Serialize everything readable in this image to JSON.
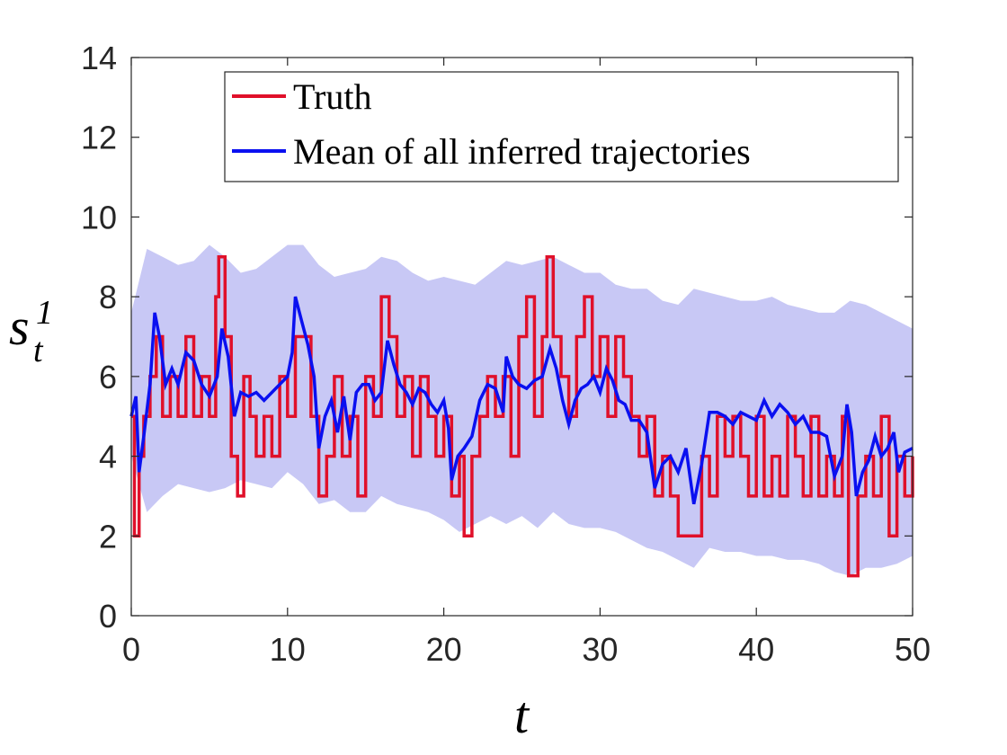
{
  "chart_data": {
    "type": "line",
    "title": "",
    "xlabel": "t",
    "ylabel": "s",
    "ylabel_sub": "t",
    "ylabel_sup": "1",
    "xlim": [
      0,
      50
    ],
    "ylim": [
      0,
      14
    ],
    "xticks": [
      0,
      10,
      20,
      30,
      40,
      50
    ],
    "yticks": [
      0,
      2,
      4,
      6,
      8,
      10,
      12,
      14
    ],
    "grid": false,
    "legend_position": "top-right",
    "colors": {
      "truth": "#e0102a",
      "mean": "#0a10f0",
      "band": "#c8c8f5"
    },
    "series": [
      {
        "name": "Truth",
        "style": "step",
        "points": [
          [
            0,
            5
          ],
          [
            0.2,
            2
          ],
          [
            0.5,
            4
          ],
          [
            0.8,
            5
          ],
          [
            1.2,
            6
          ],
          [
            1.6,
            7
          ],
          [
            2.0,
            5
          ],
          [
            2.5,
            6
          ],
          [
            3.0,
            5
          ],
          [
            3.5,
            7
          ],
          [
            4.0,
            5
          ],
          [
            4.5,
            6
          ],
          [
            5.0,
            5
          ],
          [
            5.4,
            8
          ],
          [
            5.6,
            9
          ],
          [
            6.0,
            7
          ],
          [
            6.4,
            4
          ],
          [
            6.8,
            3
          ],
          [
            7.2,
            6
          ],
          [
            7.6,
            5
          ],
          [
            8.0,
            4
          ],
          [
            8.5,
            5
          ],
          [
            9.0,
            4
          ],
          [
            9.5,
            6
          ],
          [
            10.0,
            5
          ],
          [
            10.5,
            7
          ],
          [
            11.0,
            7
          ],
          [
            11.5,
            5
          ],
          [
            12.0,
            3
          ],
          [
            12.5,
            4
          ],
          [
            13.0,
            6
          ],
          [
            13.5,
            4
          ],
          [
            14.0,
            5
          ],
          [
            14.5,
            3
          ],
          [
            15.0,
            6
          ],
          [
            15.5,
            5
          ],
          [
            16.0,
            8
          ],
          [
            16.5,
            7
          ],
          [
            17.0,
            5
          ],
          [
            17.5,
            6
          ],
          [
            18.0,
            4
          ],
          [
            18.5,
            6
          ],
          [
            19.0,
            5
          ],
          [
            19.5,
            4
          ],
          [
            20.0,
            5
          ],
          [
            20.5,
            3
          ],
          [
            21.0,
            4
          ],
          [
            21.3,
            2
          ],
          [
            21.8,
            4
          ],
          [
            22.3,
            5
          ],
          [
            22.8,
            6
          ],
          [
            23.3,
            5
          ],
          [
            23.8,
            6
          ],
          [
            24.3,
            4
          ],
          [
            24.8,
            7
          ],
          [
            25.3,
            8
          ],
          [
            25.8,
            5
          ],
          [
            26.3,
            7
          ],
          [
            26.6,
            9
          ],
          [
            27.0,
            7
          ],
          [
            27.5,
            6
          ],
          [
            28.0,
            5
          ],
          [
            28.5,
            7
          ],
          [
            29.0,
            8
          ],
          [
            29.5,
            6
          ],
          [
            30.0,
            7
          ],
          [
            30.5,
            5
          ],
          [
            31.0,
            7
          ],
          [
            31.5,
            6
          ],
          [
            32.0,
            5
          ],
          [
            32.5,
            4
          ],
          [
            33.0,
            5
          ],
          [
            33.5,
            3
          ],
          [
            34.0,
            4
          ],
          [
            34.5,
            3
          ],
          [
            35.0,
            2
          ],
          [
            35.5,
            2
          ],
          [
            36.0,
            2
          ],
          [
            36.5,
            4
          ],
          [
            37.0,
            3
          ],
          [
            37.5,
            5
          ],
          [
            38.0,
            4
          ],
          [
            38.5,
            5
          ],
          [
            39.0,
            4
          ],
          [
            39.5,
            3
          ],
          [
            40.0,
            5
          ],
          [
            40.5,
            3
          ],
          [
            41.0,
            4
          ],
          [
            41.5,
            3
          ],
          [
            42.0,
            5
          ],
          [
            42.5,
            4
          ],
          [
            43.0,
            3
          ],
          [
            43.5,
            5
          ],
          [
            44.0,
            3
          ],
          [
            44.5,
            4
          ],
          [
            45.0,
            3
          ],
          [
            45.5,
            5
          ],
          [
            45.9,
            1
          ],
          [
            46.5,
            3
          ],
          [
            47.0,
            4
          ],
          [
            47.5,
            3
          ],
          [
            48.0,
            5
          ],
          [
            48.5,
            2
          ],
          [
            49.0,
            4
          ],
          [
            49.5,
            3
          ],
          [
            50.0,
            4
          ]
        ]
      },
      {
        "name": "Mean of all inferred trajectories",
        "style": "line",
        "points": [
          [
            0,
            5.0
          ],
          [
            0.3,
            5.5
          ],
          [
            0.5,
            3.6
          ],
          [
            0.8,
            4.5
          ],
          [
            1.2,
            5.8
          ],
          [
            1.5,
            7.6
          ],
          [
            1.8,
            7.0
          ],
          [
            2.2,
            5.8
          ],
          [
            2.6,
            6.2
          ],
          [
            3.0,
            5.8
          ],
          [
            3.5,
            6.6
          ],
          [
            4.0,
            6.4
          ],
          [
            4.5,
            5.8
          ],
          [
            5.0,
            5.5
          ],
          [
            5.5,
            6.0
          ],
          [
            5.8,
            7.2
          ],
          [
            6.2,
            6.5
          ],
          [
            6.6,
            5.0
          ],
          [
            7.0,
            5.6
          ],
          [
            7.5,
            5.5
          ],
          [
            8.0,
            5.6
          ],
          [
            8.5,
            5.4
          ],
          [
            9.0,
            5.6
          ],
          [
            9.5,
            5.8
          ],
          [
            10.0,
            6.0
          ],
          [
            10.3,
            6.6
          ],
          [
            10.5,
            8.0
          ],
          [
            10.9,
            7.4
          ],
          [
            11.3,
            6.8
          ],
          [
            11.7,
            6.0
          ],
          [
            12.0,
            4.2
          ],
          [
            12.4,
            5.0
          ],
          [
            12.8,
            5.4
          ],
          [
            13.2,
            4.6
          ],
          [
            13.6,
            5.5
          ],
          [
            14.0,
            4.4
          ],
          [
            14.4,
            5.6
          ],
          [
            14.8,
            5.8
          ],
          [
            15.2,
            5.8
          ],
          [
            15.6,
            5.4
          ],
          [
            16.0,
            5.6
          ],
          [
            16.4,
            6.9
          ],
          [
            16.8,
            6.3
          ],
          [
            17.2,
            5.8
          ],
          [
            17.6,
            5.6
          ],
          [
            18.0,
            5.3
          ],
          [
            18.4,
            5.7
          ],
          [
            18.8,
            5.6
          ],
          [
            19.2,
            5.3
          ],
          [
            19.6,
            5.1
          ],
          [
            20.0,
            5.4
          ],
          [
            20.3,
            4.7
          ],
          [
            20.5,
            3.4
          ],
          [
            20.9,
            4.0
          ],
          [
            21.3,
            4.2
          ],
          [
            21.8,
            4.5
          ],
          [
            22.3,
            5.4
          ],
          [
            22.8,
            5.8
          ],
          [
            23.3,
            5.7
          ],
          [
            23.8,
            5.1
          ],
          [
            24.0,
            6.5
          ],
          [
            24.4,
            6.0
          ],
          [
            24.8,
            5.8
          ],
          [
            25.3,
            5.7
          ],
          [
            25.8,
            5.9
          ],
          [
            26.3,
            6.0
          ],
          [
            26.8,
            6.7
          ],
          [
            27.2,
            6.2
          ],
          [
            27.6,
            5.4
          ],
          [
            28.0,
            4.8
          ],
          [
            28.4,
            5.4
          ],
          [
            28.8,
            5.7
          ],
          [
            29.2,
            5.8
          ],
          [
            29.6,
            6.0
          ],
          [
            30.0,
            5.6
          ],
          [
            30.4,
            6.2
          ],
          [
            30.8,
            5.9
          ],
          [
            31.2,
            5.4
          ],
          [
            31.6,
            5.3
          ],
          [
            32.0,
            4.9
          ],
          [
            32.5,
            4.9
          ],
          [
            33.0,
            4.6
          ],
          [
            33.5,
            3.2
          ],
          [
            34.0,
            3.8
          ],
          [
            34.5,
            4.0
          ],
          [
            35.0,
            3.6
          ],
          [
            35.5,
            4.2
          ],
          [
            36.0,
            2.8
          ],
          [
            36.5,
            3.8
          ],
          [
            37.0,
            5.1
          ],
          [
            37.5,
            5.1
          ],
          [
            38.0,
            5.0
          ],
          [
            38.5,
            4.8
          ],
          [
            39.0,
            5.1
          ],
          [
            39.5,
            5.0
          ],
          [
            40.0,
            4.9
          ],
          [
            40.5,
            5.4
          ],
          [
            41.0,
            5.0
          ],
          [
            41.5,
            5.3
          ],
          [
            42.0,
            5.1
          ],
          [
            42.5,
            4.8
          ],
          [
            43.0,
            5.0
          ],
          [
            43.5,
            4.6
          ],
          [
            44.0,
            4.6
          ],
          [
            44.5,
            4.5
          ],
          [
            45.0,
            3.5
          ],
          [
            45.5,
            4.0
          ],
          [
            45.8,
            5.3
          ],
          [
            46.1,
            4.6
          ],
          [
            46.4,
            3.0
          ],
          [
            46.8,
            3.6
          ],
          [
            47.2,
            3.9
          ],
          [
            47.6,
            4.5
          ],
          [
            48.0,
            4.0
          ],
          [
            48.4,
            4.2
          ],
          [
            48.8,
            4.6
          ],
          [
            49.1,
            3.6
          ],
          [
            49.5,
            4.1
          ],
          [
            50.0,
            4.2
          ]
        ]
      }
    ],
    "uncertainty_band": {
      "x": [
        0,
        1,
        2,
        3,
        4,
        5,
        6,
        7,
        8,
        9,
        10,
        11,
        12,
        13,
        14,
        15,
        16,
        17,
        18,
        19,
        20,
        21,
        22,
        23,
        24,
        25,
        26,
        27,
        28,
        29,
        30,
        31,
        32,
        33,
        34,
        35,
        36,
        37,
        38,
        39,
        40,
        41,
        42,
        43,
        44,
        45,
        46,
        47,
        48,
        49,
        50
      ],
      "upper": [
        7.6,
        9.2,
        9.0,
        8.8,
        8.9,
        9.3,
        9.0,
        8.6,
        8.7,
        9.0,
        9.3,
        9.3,
        8.8,
        8.5,
        8.6,
        8.7,
        9.0,
        8.9,
        8.6,
        8.4,
        8.5,
        8.4,
        8.3,
        8.6,
        8.9,
        8.8,
        8.9,
        9.0,
        8.8,
        8.6,
        8.6,
        8.3,
        8.2,
        8.2,
        7.9,
        7.8,
        8.2,
        8.1,
        8.0,
        7.9,
        7.9,
        8.0,
        7.8,
        7.7,
        7.6,
        7.6,
        7.9,
        7.8,
        7.6,
        7.4,
        7.2
      ],
      "lower": [
        4.0,
        2.6,
        3.0,
        3.3,
        3.2,
        3.1,
        3.2,
        3.4,
        3.3,
        3.2,
        3.6,
        3.3,
        2.8,
        2.9,
        2.6,
        2.6,
        3.0,
        2.8,
        2.7,
        2.6,
        2.4,
        2.1,
        2.3,
        2.5,
        2.3,
        2.5,
        2.2,
        2.6,
        2.3,
        2.2,
        2.2,
        2.1,
        1.9,
        1.7,
        1.6,
        1.4,
        1.2,
        1.7,
        1.6,
        1.6,
        1.5,
        1.5,
        1.4,
        1.4,
        1.3,
        1.1,
        1.0,
        1.2,
        1.2,
        1.3,
        1.5
      ]
    }
  }
}
